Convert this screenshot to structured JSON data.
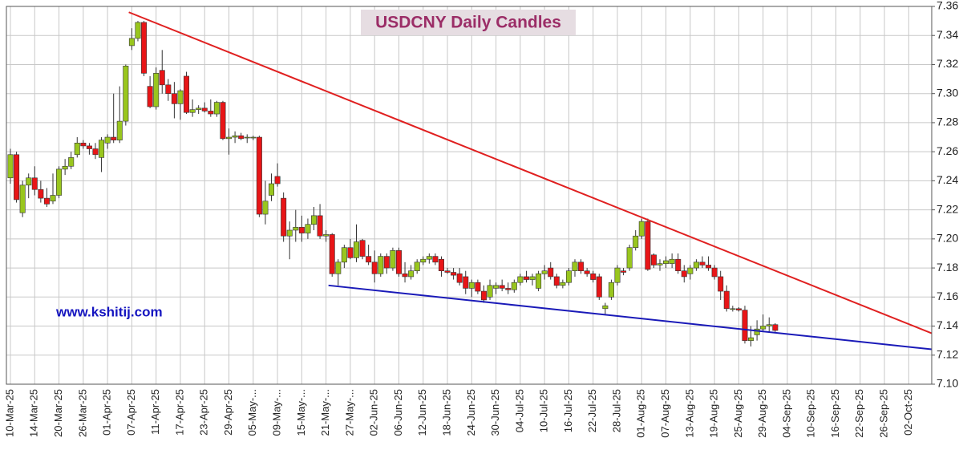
{
  "chart_data": {
    "type": "candlestick",
    "title": "USDCNY Daily Candles",
    "watermark": "www.kshitij.com",
    "up_color": "#99c61e",
    "down_color": "#e81517",
    "grid": true,
    "ylim": [
      7.1,
      7.36
    ],
    "yticks": [
      {
        "value": 7.1,
        "label": "7.10"
      },
      7.12,
      7.14,
      7.16,
      7.18,
      {
        "value": 7.2,
        "label": "7.20"
      },
      7.22,
      7.24,
      7.26,
      7.28,
      {
        "value": 7.3,
        "label": "7.30"
      },
      7.32,
      7.34,
      7.36
    ],
    "categories": [
      "10-Mar-25",
      null,
      null,
      null,
      "14-Mar-25",
      null,
      null,
      null,
      "20-Mar-25",
      null,
      null,
      null,
      "26-Mar-25",
      null,
      null,
      null,
      "01-Apr-25",
      null,
      null,
      null,
      "07-Apr-25",
      null,
      null,
      null,
      "11-Apr-25",
      null,
      null,
      null,
      "17-Apr-25",
      null,
      null,
      null,
      "23-Apr-25",
      null,
      null,
      null,
      "29-Apr-25",
      null,
      null,
      null,
      "05-May-...",
      null,
      null,
      null,
      "09-May-...",
      null,
      null,
      null,
      "15-May-...",
      null,
      null,
      null,
      "21-May-...",
      null,
      null,
      null,
      "27-May-...",
      null,
      null,
      null,
      "02-Jun-25",
      null,
      null,
      null,
      "06-Jun-25",
      null,
      null,
      null,
      "12-Jun-25",
      null,
      null,
      null,
      "18-Jun-25",
      null,
      null,
      null,
      "24-Jun-25",
      null,
      null,
      null,
      "30-Jun-25",
      null,
      null,
      null,
      "04-Jul-25",
      null,
      null,
      null,
      "10-Jul-25",
      null,
      null,
      null,
      "16-Jul-25",
      null,
      null,
      null,
      "22-Jul-25",
      null,
      null,
      null,
      "28-Jul-25",
      null,
      null,
      null,
      "01-Aug-25",
      null,
      null,
      null,
      "07-Aug-25",
      null,
      null,
      null,
      "13-Aug-25",
      null,
      null,
      null,
      "19-Aug-25",
      null,
      null,
      null,
      "25-Aug-25",
      null,
      null,
      null,
      "29-Aug-25",
      null,
      null,
      null,
      "04-Sep-25",
      null,
      null,
      null,
      "10-Sep-25",
      null,
      null,
      null,
      "16-Sep-25",
      null,
      null,
      null,
      "22-Sep-25",
      null,
      null,
      null,
      "26-Sep-25",
      null,
      null,
      null,
      "02-Oct-25",
      null,
      null,
      null
    ],
    "candles": [
      {
        "o": 7.242,
        "h": 7.262,
        "l": 7.238,
        "c": 7.258
      },
      {
        "o": 7.258,
        "h": 7.26,
        "l": 7.225,
        "c": 7.227
      },
      {
        "o": 7.218,
        "h": 7.24,
        "l": 7.215,
        "c": 7.237
      },
      {
        "o": 7.237,
        "h": 7.245,
        "l": 7.228,
        "c": 7.242
      },
      {
        "o": 7.242,
        "h": 7.25,
        "l": 7.23,
        "c": 7.234
      },
      {
        "o": 7.234,
        "h": 7.24,
        "l": 7.225,
        "c": 7.228
      },
      {
        "o": 7.228,
        "h": 7.235,
        "l": 7.222,
        "c": 7.224
      },
      {
        "o": 7.226,
        "h": 7.245,
        "l": 7.224,
        "c": 7.23
      },
      {
        "o": 7.23,
        "h": 7.25,
        "l": 7.228,
        "c": 7.248
      },
      {
        "o": 7.248,
        "h": 7.255,
        "l": 7.244,
        "c": 7.25
      },
      {
        "o": 7.25,
        "h": 7.26,
        "l": 7.248,
        "c": 7.256
      },
      {
        "o": 7.258,
        "h": 7.27,
        "l": 7.256,
        "c": 7.266
      },
      {
        "o": 7.266,
        "h": 7.268,
        "l": 7.262,
        "c": 7.264
      },
      {
        "o": 7.264,
        "h": 7.266,
        "l": 7.258,
        "c": 7.262
      },
      {
        "o": 7.262,
        "h": 7.266,
        "l": 7.255,
        "c": 7.258
      },
      {
        "o": 7.256,
        "h": 7.27,
        "l": 7.246,
        "c": 7.268
      },
      {
        "o": 7.266,
        "h": 7.272,
        "l": 7.262,
        "c": 7.27
      },
      {
        "o": 7.27,
        "h": 7.3,
        "l": 7.266,
        "c": 7.268
      },
      {
        "o": 7.268,
        "h": 7.305,
        "l": 7.266,
        "c": 7.281
      },
      {
        "o": 7.281,
        "h": 7.32,
        "l": 7.278,
        "c": 7.319
      },
      {
        "o": 7.333,
        "h": 7.345,
        "l": 7.33,
        "c": 7.338
      },
      {
        "o": 7.338,
        "h": 7.35,
        "l": 7.336,
        "c": 7.349
      },
      {
        "o": 7.349,
        "h": 7.35,
        "l": 7.312,
        "c": 7.314
      },
      {
        "o": 7.305,
        "h": 7.312,
        "l": 7.29,
        "c": 7.291
      },
      {
        "o": 7.291,
        "h": 7.318,
        "l": 7.289,
        "c": 7.314
      },
      {
        "o": 7.316,
        "h": 7.33,
        "l": 7.3,
        "c": 7.306
      },
      {
        "o": 7.306,
        "h": 7.31,
        "l": 7.295,
        "c": 7.3
      },
      {
        "o": 7.3,
        "h": 7.308,
        "l": 7.283,
        "c": 7.293
      },
      {
        "o": 7.293,
        "h": 7.303,
        "l": 7.282,
        "c": 7.302
      },
      {
        "o": 7.312,
        "h": 7.315,
        "l": 7.286,
        "c": 7.287
      },
      {
        "o": 7.287,
        "h": 7.296,
        "l": 7.284,
        "c": 7.289
      },
      {
        "o": 7.289,
        "h": 7.292,
        "l": 7.286,
        "c": 7.29
      },
      {
        "o": 7.29,
        "h": 7.294,
        "l": 7.287,
        "c": 7.288
      },
      {
        "o": 7.288,
        "h": 7.296,
        "l": 7.284,
        "c": 7.286
      },
      {
        "o": 7.286,
        "h": 7.295,
        "l": 7.284,
        "c": 7.294
      },
      {
        "o": 7.294,
        "h": 7.295,
        "l": 7.268,
        "c": 7.269
      },
      {
        "o": 7.269,
        "h": 7.276,
        "l": 7.258,
        "c": 7.27
      },
      {
        "o": 7.27,
        "h": 7.274,
        "l": 7.266,
        "c": 7.271
      },
      {
        "o": 7.271,
        "h": 7.273,
        "l": 7.268,
        "c": 7.269
      },
      {
        "o": 7.27,
        "h": 7.272,
        "l": 7.266,
        "c": 7.27
      },
      {
        "o": 7.27,
        "h": 7.271,
        "l": 7.268,
        "c": 7.27
      },
      {
        "o": 7.27,
        "h": 7.271,
        "l": 7.215,
        "c": 7.217
      },
      {
        "o": 7.217,
        "h": 7.24,
        "l": 7.21,
        "c": 7.226
      },
      {
        "o": 7.23,
        "h": 7.245,
        "l": 7.226,
        "c": 7.238
      },
      {
        "o": 7.243,
        "h": 7.252,
        "l": 7.236,
        "c": 7.238
      },
      {
        "o": 7.228,
        "h": 7.232,
        "l": 7.198,
        "c": 7.202
      },
      {
        "o": 7.202,
        "h": 7.212,
        "l": 7.186,
        "c": 7.206
      },
      {
        "o": 7.206,
        "h": 7.22,
        "l": 7.198,
        "c": 7.208
      },
      {
        "o": 7.208,
        "h": 7.216,
        "l": 7.198,
        "c": 7.204
      },
      {
        "o": 7.204,
        "h": 7.214,
        "l": 7.2,
        "c": 7.21
      },
      {
        "o": 7.21,
        "h": 7.222,
        "l": 7.206,
        "c": 7.216
      },
      {
        "o": 7.216,
        "h": 7.224,
        "l": 7.2,
        "c": 7.202
      },
      {
        "o": 7.202,
        "h": 7.206,
        "l": 7.198,
        "c": 7.203
      },
      {
        "o": 7.203,
        "h": 7.204,
        "l": 7.174,
        "c": 7.176
      },
      {
        "o": 7.176,
        "h": 7.186,
        "l": 7.168,
        "c": 7.184
      },
      {
        "o": 7.184,
        "h": 7.196,
        "l": 7.18,
        "c": 7.194
      },
      {
        "o": 7.194,
        "h": 7.2,
        "l": 7.186,
        "c": 7.187
      },
      {
        "o": 7.187,
        "h": 7.21,
        "l": 7.184,
        "c": 7.198
      },
      {
        "o": 7.199,
        "h": 7.2,
        "l": 7.186,
        "c": 7.188
      },
      {
        "o": 7.188,
        "h": 7.196,
        "l": 7.182,
        "c": 7.184
      },
      {
        "o": 7.184,
        "h": 7.192,
        "l": 7.17,
        "c": 7.176
      },
      {
        "o": 7.176,
        "h": 7.19,
        "l": 7.174,
        "c": 7.188
      },
      {
        "o": 7.188,
        "h": 7.19,
        "l": 7.176,
        "c": 7.18
      },
      {
        "o": 7.18,
        "h": 7.194,
        "l": 7.178,
        "c": 7.192
      },
      {
        "o": 7.192,
        "h": 7.194,
        "l": 7.174,
        "c": 7.176
      },
      {
        "o": 7.176,
        "h": 7.184,
        "l": 7.17,
        "c": 7.174
      },
      {
        "o": 7.174,
        "h": 7.182,
        "l": 7.172,
        "c": 7.178
      },
      {
        "o": 7.178,
        "h": 7.186,
        "l": 7.176,
        "c": 7.184
      },
      {
        "o": 7.184,
        "h": 7.188,
        "l": 7.182,
        "c": 7.186
      },
      {
        "o": 7.186,
        "h": 7.19,
        "l": 7.183,
        "c": 7.188
      },
      {
        "o": 7.188,
        "h": 7.19,
        "l": 7.182,
        "c": 7.184
      },
      {
        "o": 7.186,
        "h": 7.188,
        "l": 7.174,
        "c": 7.178
      },
      {
        "o": 7.178,
        "h": 7.18,
        "l": 7.176,
        "c": 7.177
      },
      {
        "o": 7.177,
        "h": 7.18,
        "l": 7.172,
        "c": 7.175
      },
      {
        "o": 7.176,
        "h": 7.18,
        "l": 7.168,
        "c": 7.17
      },
      {
        "o": 7.174,
        "h": 7.178,
        "l": 7.162,
        "c": 7.166
      },
      {
        "o": 7.166,
        "h": 7.172,
        "l": 7.16,
        "c": 7.17
      },
      {
        "o": 7.17,
        "h": 7.172,
        "l": 7.162,
        "c": 7.164
      },
      {
        "o": 7.164,
        "h": 7.168,
        "l": 7.156,
        "c": 7.158
      },
      {
        "o": 7.16,
        "h": 7.172,
        "l": 7.158,
        "c": 7.168
      },
      {
        "o": 7.166,
        "h": 7.17,
        "l": 7.162,
        "c": 7.168
      },
      {
        "o": 7.168,
        "h": 7.172,
        "l": 7.164,
        "c": 7.166
      },
      {
        "o": 7.166,
        "h": 7.17,
        "l": 7.162,
        "c": 7.165
      },
      {
        "o": 7.165,
        "h": 7.172,
        "l": 7.163,
        "c": 7.17
      },
      {
        "o": 7.17,
        "h": 7.176,
        "l": 7.168,
        "c": 7.174
      },
      {
        "o": 7.174,
        "h": 7.178,
        "l": 7.17,
        "c": 7.172
      },
      {
        "o": 7.172,
        "h": 7.176,
        "l": 7.168,
        "c": 7.174
      },
      {
        "o": 7.166,
        "h": 7.178,
        "l": 7.164,
        "c": 7.176
      },
      {
        "o": 7.176,
        "h": 7.182,
        "l": 7.172,
        "c": 7.178
      },
      {
        "o": 7.18,
        "h": 7.184,
        "l": 7.172,
        "c": 7.174
      },
      {
        "o": 7.174,
        "h": 7.176,
        "l": 7.166,
        "c": 7.168
      },
      {
        "o": 7.168,
        "h": 7.172,
        "l": 7.166,
        "c": 7.17
      },
      {
        "o": 7.17,
        "h": 7.18,
        "l": 7.168,
        "c": 7.178
      },
      {
        "o": 7.178,
        "h": 7.186,
        "l": 7.174,
        "c": 7.184
      },
      {
        "o": 7.184,
        "h": 7.186,
        "l": 7.176,
        "c": 7.178
      },
      {
        "o": 7.178,
        "h": 7.18,
        "l": 7.174,
        "c": 7.176
      },
      {
        "o": 7.176,
        "h": 7.178,
        "l": 7.17,
        "c": 7.172
      },
      {
        "o": 7.174,
        "h": 7.176,
        "l": 7.158,
        "c": 7.16
      },
      {
        "o": 7.152,
        "h": 7.156,
        "l": 7.148,
        "c": 7.154
      },
      {
        "o": 7.16,
        "h": 7.172,
        "l": 7.158,
        "c": 7.17
      },
      {
        "o": 7.17,
        "h": 7.182,
        "l": 7.168,
        "c": 7.18
      },
      {
        "o": 7.178,
        "h": 7.18,
        "l": 7.175,
        "c": 7.177
      },
      {
        "o": 7.18,
        "h": 7.196,
        "l": 7.178,
        "c": 7.194
      },
      {
        "o": 7.194,
        "h": 7.206,
        "l": 7.192,
        "c": 7.202
      },
      {
        "o": 7.202,
        "h": 7.214,
        "l": 7.2,
        "c": 7.212
      },
      {
        "o": 7.212,
        "h": 7.214,
        "l": 7.178,
        "c": 7.179
      },
      {
        "o": 7.189,
        "h": 7.19,
        "l": 7.18,
        "c": 7.182
      },
      {
        "o": 7.182,
        "h": 7.186,
        "l": 7.178,
        "c": 7.183
      },
      {
        "o": 7.183,
        "h": 7.188,
        "l": 7.18,
        "c": 7.185
      },
      {
        "o": 7.183,
        "h": 7.19,
        "l": 7.18,
        "c": 7.186
      },
      {
        "o": 7.186,
        "h": 7.19,
        "l": 7.176,
        "c": 7.178
      },
      {
        "o": 7.178,
        "h": 7.182,
        "l": 7.17,
        "c": 7.174
      },
      {
        "o": 7.176,
        "h": 7.182,
        "l": 7.172,
        "c": 7.18
      },
      {
        "o": 7.18,
        "h": 7.186,
        "l": 7.178,
        "c": 7.184
      },
      {
        "o": 7.184,
        "h": 7.188,
        "l": 7.18,
        "c": 7.182
      },
      {
        "o": 7.182,
        "h": 7.188,
        "l": 7.178,
        "c": 7.18
      },
      {
        "o": 7.18,
        "h": 7.182,
        "l": 7.172,
        "c": 7.174
      },
      {
        "o": 7.174,
        "h": 7.178,
        "l": 7.158,
        "c": 7.164
      },
      {
        "o": 7.164,
        "h": 7.168,
        "l": 7.15,
        "c": 7.152
      },
      {
        "o": 7.152,
        "h": 7.154,
        "l": 7.15,
        "c": 7.152
      },
      {
        "o": 7.152,
        "h": 7.153,
        "l": 7.15,
        "c": 7.151
      },
      {
        "o": 7.151,
        "h": 7.154,
        "l": 7.128,
        "c": 7.13
      },
      {
        "o": 7.13,
        "h": 7.14,
        "l": 7.126,
        "c": 7.132
      },
      {
        "o": 7.134,
        "h": 7.144,
        "l": 7.13,
        "c": 7.138
      },
      {
        "o": 7.138,
        "h": 7.148,
        "l": 7.136,
        "c": 7.14
      },
      {
        "o": 7.14,
        "h": 7.146,
        "l": 7.136,
        "c": 7.141
      },
      {
        "o": 7.141,
        "h": 7.142,
        "l": 7.136,
        "c": 7.137
      },
      null,
      null,
      null,
      null,
      null,
      null,
      null,
      null,
      null,
      null,
      null,
      null,
      null,
      null,
      null,
      null,
      null,
      null,
      null,
      null,
      null,
      null,
      null,
      null,
      null
    ],
    "trendlines": [
      {
        "color": "#e02020",
        "x": [
          19.5,
          151.8
        ],
        "y": [
          7.356,
          7.135
        ]
      },
      {
        "color": "#1a1ab8",
        "x": [
          52.4,
          151.8
        ],
        "y": [
          7.168,
          7.124
        ]
      }
    ]
  }
}
